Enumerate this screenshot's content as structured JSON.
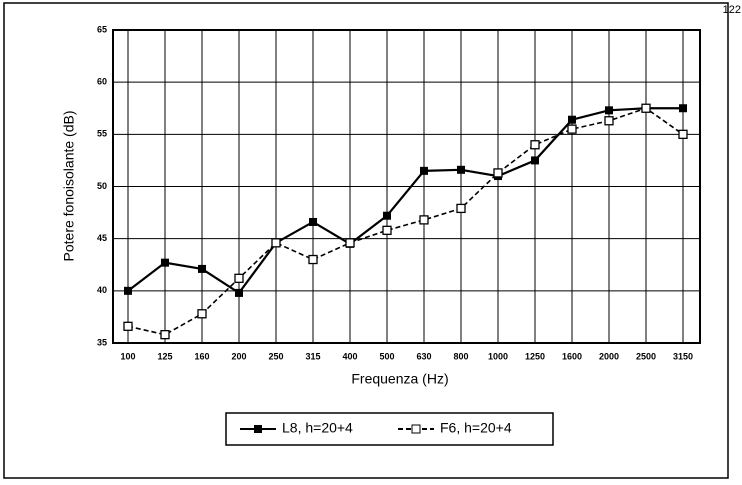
{
  "page_number": "122",
  "chart_data": {
    "type": "line",
    "xlabel": "Frequenza (Hz)",
    "ylabel": "Potere fonoisolante (dB)",
    "categories": [
      "100",
      "125",
      "160",
      "200",
      "250",
      "315",
      "400",
      "500",
      "630",
      "800",
      "1000",
      "1250",
      "1600",
      "2000",
      "2500",
      "3150"
    ],
    "ylim": [
      35,
      65
    ],
    "yticks": [
      35,
      40,
      45,
      50,
      55,
      60,
      65
    ],
    "grid": true,
    "series": [
      {
        "name": "L8, h=20+4",
        "color": "#000000",
        "marker": "filled",
        "dash": false,
        "values": [
          40,
          42.7,
          42.1,
          39.8,
          44.6,
          46.6,
          44.5,
          47.2,
          51.5,
          51.6,
          51.0,
          52.5,
          56.4,
          57.3,
          57.5,
          57.5
        ]
      },
      {
        "name": "F6, h=20+4",
        "color": "#000000",
        "marker": "open",
        "dash": true,
        "values": [
          36.6,
          35.8,
          37.8,
          41.2,
          44.6,
          43.0,
          44.6,
          45.8,
          46.8,
          47.9,
          51.3,
          54.0,
          55.5,
          56.3,
          57.5,
          55.0
        ]
      }
    ]
  }
}
